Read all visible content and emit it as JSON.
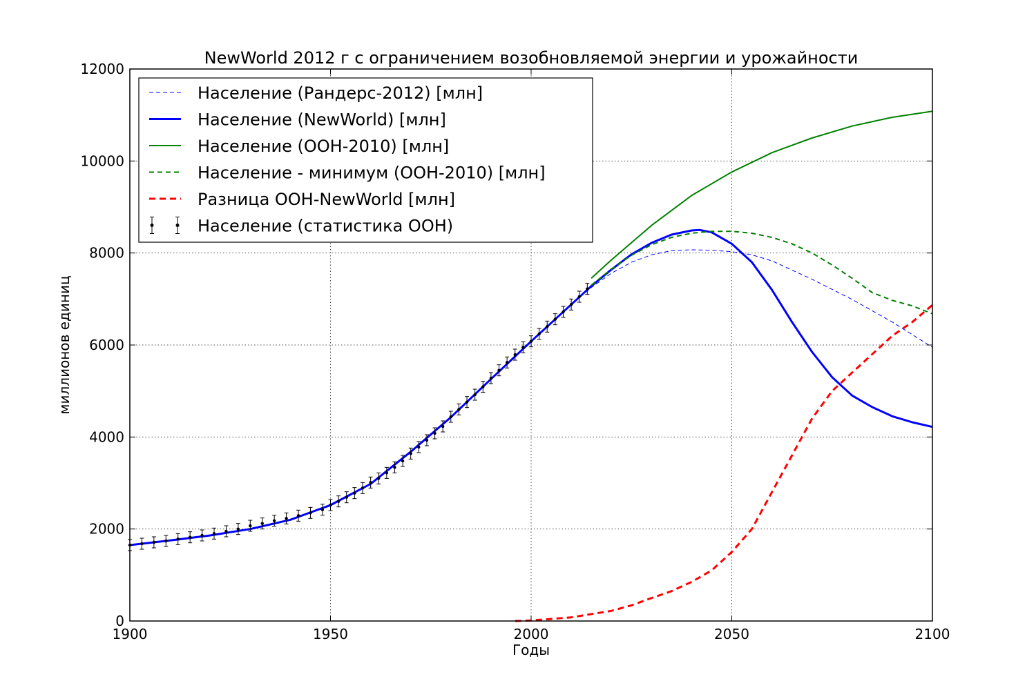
{
  "chart_data": {
    "type": "line",
    "title": "NewWorld 2012 г с ограничением возобновляемой энергии и урожайности",
    "xlabel": "Годы",
    "ylabel": "миллионов единиц",
    "xlim": [
      1900,
      2100
    ],
    "ylim": [
      0,
      12000
    ],
    "xticks": [
      "1900",
      "1950",
      "2000",
      "2050",
      "2100"
    ],
    "yticks": [
      "0",
      "2000",
      "4000",
      "6000",
      "8000",
      "10000",
      "12000"
    ],
    "grid": true,
    "legend_position": "top-left",
    "series": [
      {
        "name": "Население (Рандерс-2012) [млн]",
        "color": "#0000ff",
        "style": "dashed",
        "width": 1,
        "x": [
          1900,
          1910,
          1920,
          1930,
          1940,
          1950,
          1960,
          1970,
          1980,
          1990,
          2000,
          2010,
          2015,
          2020,
          2025,
          2030,
          2035,
          2040,
          2045,
          2050,
          2055,
          2060,
          2070,
          2080,
          2090,
          2100
        ],
        "y": [
          1650,
          1750,
          1860,
          2000,
          2200,
          2500,
          2980,
          3680,
          4430,
          5260,
          6080,
          6880,
          7250,
          7560,
          7800,
          7960,
          8050,
          8070,
          8060,
          8030,
          7960,
          7830,
          7430,
          6990,
          6500,
          5950
        ]
      },
      {
        "name": "Население (NewWorld) [млн]",
        "color": "#0000ff",
        "style": "solid",
        "width": 3,
        "x": [
          1900,
          1910,
          1920,
          1930,
          1940,
          1950,
          1960,
          1970,
          1980,
          1990,
          2000,
          2010,
          2015,
          2020,
          2025,
          2030,
          2035,
          2040,
          2042,
          2045,
          2050,
          2055,
          2060,
          2065,
          2070,
          2075,
          2080,
          2085,
          2090,
          2095,
          2100
        ],
        "y": [
          1650,
          1750,
          1860,
          2000,
          2200,
          2520,
          2980,
          3680,
          4430,
          5260,
          6080,
          6880,
          7280,
          7640,
          7970,
          8220,
          8400,
          8490,
          8500,
          8450,
          8200,
          7800,
          7200,
          6500,
          5850,
          5300,
          4900,
          4650,
          4450,
          4320,
          4220
        ]
      },
      {
        "name": "Население (ООН-2010) [млн]",
        "color": "#008000",
        "style": "solid",
        "width": 2,
        "x": [
          2015,
          2020,
          2030,
          2040,
          2050,
          2060,
          2070,
          2080,
          2090,
          2100
        ],
        "y": [
          7450,
          7850,
          8600,
          9250,
          9760,
          10180,
          10500,
          10760,
          10950,
          11080
        ]
      },
      {
        "name": "Население - минимум (ООН-2010) [млн]",
        "color": "#008000",
        "style": "dashed",
        "width": 2,
        "x": [
          2015,
          2020,
          2025,
          2030,
          2035,
          2040,
          2045,
          2050,
          2055,
          2060,
          2065,
          2070,
          2075,
          2080,
          2085,
          2090,
          2095,
          2100
        ],
        "y": [
          7300,
          7650,
          7950,
          8180,
          8340,
          8430,
          8470,
          8470,
          8430,
          8340,
          8200,
          8000,
          7740,
          7450,
          7140,
          6970,
          6850,
          6680
        ]
      },
      {
        "name": "Разница ООН-NewWorld [млн]",
        "color": "#ff0000",
        "style": "dashed",
        "width": 3,
        "x": [
          1996,
          2000,
          2010,
          2020,
          2025,
          2030,
          2035,
          2040,
          2045,
          2050,
          2055,
          2060,
          2065,
          2070,
          2075,
          2080,
          2085,
          2090,
          2095,
          2100
        ],
        "y": [
          0,
          10,
          80,
          220,
          340,
          500,
          650,
          850,
          1100,
          1500,
          2000,
          2800,
          3600,
          4400,
          5000,
          5400,
          5800,
          6200,
          6500,
          6870
        ]
      },
      {
        "name": "Население (статистика ООН)",
        "color": "#000000",
        "style": "errorbar",
        "x": [
          1900,
          1903,
          1906,
          1909,
          1912,
          1915,
          1918,
          1921,
          1924,
          1927,
          1930,
          1933,
          1936,
          1939,
          1942,
          1945,
          1948,
          1950,
          1952,
          1954,
          1956,
          1958,
          1960,
          1962,
          1964,
          1966,
          1968,
          1970,
          1972,
          1974,
          1976,
          1978,
          1980,
          1982,
          1984,
          1986,
          1988,
          1990,
          1992,
          1994,
          1996,
          1998,
          2000,
          2002,
          2004,
          2006,
          2008,
          2010,
          2012,
          2014
        ],
        "y": [
          1650,
          1680,
          1710,
          1740,
          1780,
          1820,
          1860,
          1900,
          1950,
          2000,
          2070,
          2120,
          2180,
          2230,
          2290,
          2350,
          2420,
          2520,
          2600,
          2690,
          2780,
          2890,
          3010,
          3100,
          3220,
          3340,
          3480,
          3640,
          3780,
          3930,
          4080,
          4230,
          4440,
          4600,
          4760,
          4920,
          5090,
          5280,
          5450,
          5620,
          5790,
          5950,
          6080,
          6240,
          6400,
          6560,
          6720,
          6880,
          7050,
          7220
        ],
        "yerr": 120
      }
    ]
  }
}
